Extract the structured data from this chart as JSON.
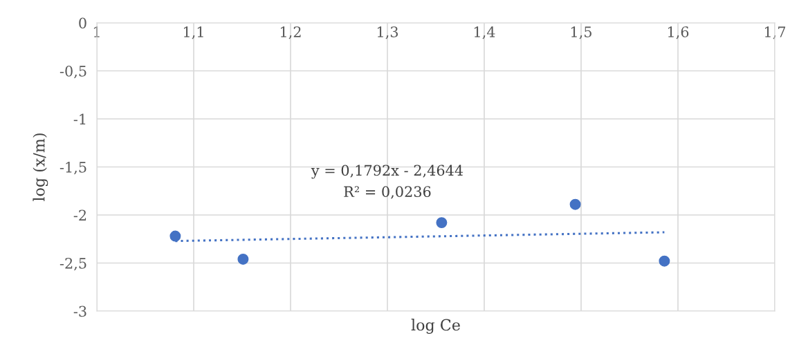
{
  "chart_data": {
    "type": "scatter",
    "xlabel": "log Ce",
    "ylabel": "log (x/m)",
    "xlim": [
      1,
      1.7
    ],
    "ylim": [
      -3,
      0
    ],
    "xticks": [
      {
        "value": 1,
        "label": "1"
      },
      {
        "value": 1.1,
        "label": "1,1"
      },
      {
        "value": 1.2,
        "label": "1,2"
      },
      {
        "value": 1.3,
        "label": "1,3"
      },
      {
        "value": 1.4,
        "label": "1,4"
      },
      {
        "value": 1.5,
        "label": "1,5"
      },
      {
        "value": 1.6,
        "label": "1,6"
      },
      {
        "value": 1.7,
        "label": "1,7"
      }
    ],
    "yticks": [
      {
        "value": 0,
        "label": "0"
      },
      {
        "value": -0.5,
        "label": "-0,5"
      },
      {
        "value": -1,
        "label": "-1"
      },
      {
        "value": -1.5,
        "label": "-1,5"
      },
      {
        "value": -2,
        "label": "-2"
      },
      {
        "value": -2.5,
        "label": "-2,5"
      },
      {
        "value": -3,
        "label": "-3"
      }
    ],
    "grid": true,
    "series": [
      {
        "marker": "circle",
        "color": "#4472c4",
        "x": [
          1.081,
          1.151,
          1.356,
          1.494,
          1.586
        ],
        "values": [
          -2.22,
          -2.46,
          -2.08,
          -1.89,
          -2.48
        ]
      },
      {
        "type": "line",
        "marker": "none",
        "color": "#4472c4",
        "line_style": "dotted",
        "x": [
          1.081,
          1.586
        ],
        "values": [
          -2.271,
          -2.18
        ]
      }
    ],
    "annotations": [
      "y = 0,1792x - 2,4644",
      "R² = 0,0236"
    ]
  }
}
